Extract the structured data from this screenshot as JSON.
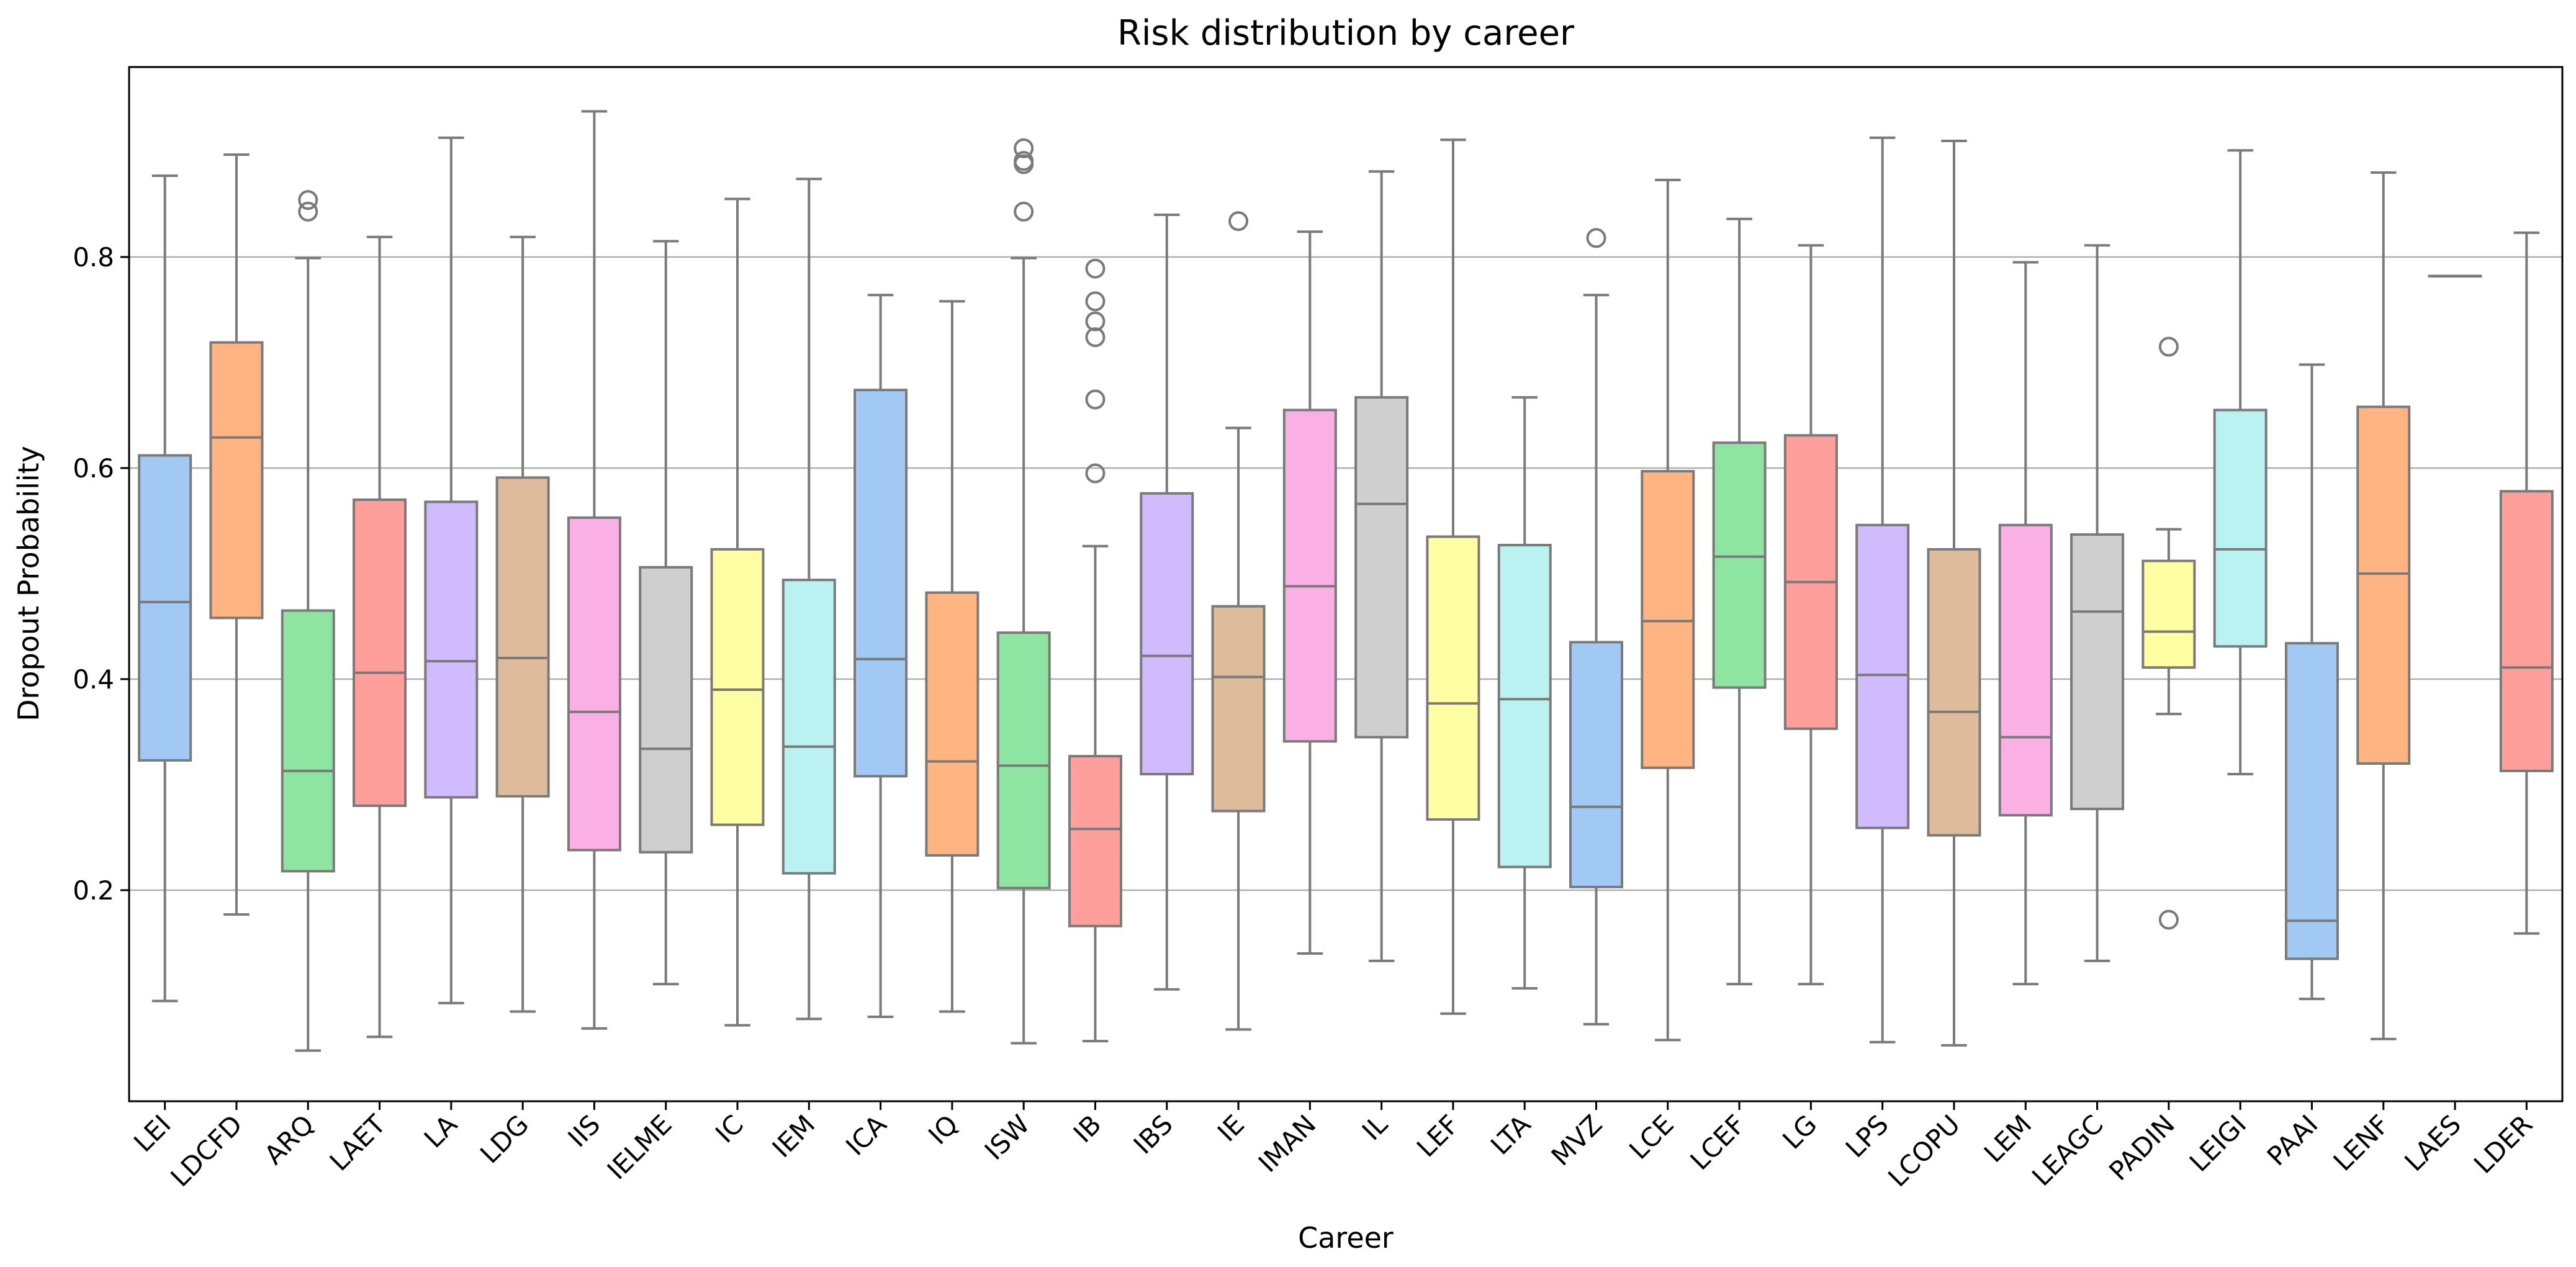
{
  "chart_data": {
    "type": "box",
    "title": "Risk distribution by career",
    "xlabel": "Career",
    "ylabel": "Dropout Probability",
    "ylim": [
      0.0,
      0.98
    ],
    "yticks": [
      0.2,
      0.4,
      0.6,
      0.8
    ],
    "ytick_labels": [
      "0.2",
      "0.4",
      "0.6",
      "0.8"
    ],
    "grid": "horizontal",
    "series": [
      {
        "name": "LEI",
        "color": "#a1c9f4",
        "whislo": 0.095,
        "q1": 0.323,
        "median": 0.473,
        "q3": 0.612,
        "whishi": 0.877,
        "fliers": []
      },
      {
        "name": "LDCFD",
        "color": "#ffb482",
        "whislo": 0.177,
        "q1": 0.458,
        "median": 0.629,
        "q3": 0.719,
        "whishi": 0.897,
        "fliers": []
      },
      {
        "name": "ARQ",
        "color": "#8de5a1",
        "whislo": 0.048,
        "q1": 0.218,
        "median": 0.313,
        "q3": 0.465,
        "whishi": 0.799,
        "fliers": [
          0.854,
          0.843
        ]
      },
      {
        "name": "LAET",
        "color": "#ff9f9b",
        "whislo": 0.061,
        "q1": 0.28,
        "median": 0.406,
        "q3": 0.57,
        "whishi": 0.819,
        "fliers": []
      },
      {
        "name": "LA",
        "color": "#d0bbff",
        "whislo": 0.093,
        "q1": 0.288,
        "median": 0.417,
        "q3": 0.568,
        "whishi": 0.913,
        "fliers": []
      },
      {
        "name": "LDG",
        "color": "#debb9b",
        "whislo": 0.085,
        "q1": 0.289,
        "median": 0.42,
        "q3": 0.591,
        "whishi": 0.819,
        "fliers": []
      },
      {
        "name": "IIS",
        "color": "#fab0e4",
        "whislo": 0.069,
        "q1": 0.238,
        "median": 0.369,
        "q3": 0.553,
        "whishi": 0.938,
        "fliers": []
      },
      {
        "name": "IELME",
        "color": "#cfcfcf",
        "whislo": 0.111,
        "q1": 0.236,
        "median": 0.334,
        "q3": 0.506,
        "whishi": 0.815,
        "fliers": []
      },
      {
        "name": "IC",
        "color": "#fffea3",
        "whislo": 0.072,
        "q1": 0.262,
        "median": 0.39,
        "q3": 0.523,
        "whishi": 0.855,
        "fliers": []
      },
      {
        "name": "IEM",
        "color": "#b9f2f0",
        "whislo": 0.078,
        "q1": 0.216,
        "median": 0.336,
        "q3": 0.494,
        "whishi": 0.874,
        "fliers": []
      },
      {
        "name": "ICA",
        "color": "#a1c9f4",
        "whislo": 0.08,
        "q1": 0.308,
        "median": 0.419,
        "q3": 0.674,
        "whishi": 0.764,
        "fliers": []
      },
      {
        "name": "IQ",
        "color": "#ffb482",
        "whislo": 0.085,
        "q1": 0.233,
        "median": 0.322,
        "q3": 0.482,
        "whishi": 0.758,
        "fliers": []
      },
      {
        "name": "ISW",
        "color": "#8de5a1",
        "whislo": 0.055,
        "q1": 0.202,
        "median": 0.318,
        "q3": 0.444,
        "whishi": 0.799,
        "fliers": [
          0.903,
          0.891,
          0.888,
          0.843
        ]
      },
      {
        "name": "IB",
        "color": "#ff9f9b",
        "whislo": 0.057,
        "q1": 0.166,
        "median": 0.258,
        "q3": 0.327,
        "whishi": 0.526,
        "fliers": [
          0.789,
          0.758,
          0.739,
          0.724,
          0.665,
          0.595
        ]
      },
      {
        "name": "IBS",
        "color": "#d0bbff",
        "whislo": 0.106,
        "q1": 0.31,
        "median": 0.422,
        "q3": 0.576,
        "whishi": 0.84,
        "fliers": []
      },
      {
        "name": "IE",
        "color": "#debb9b",
        "whislo": 0.068,
        "q1": 0.275,
        "median": 0.402,
        "q3": 0.469,
        "whishi": 0.638,
        "fliers": [
          0.834
        ]
      },
      {
        "name": "IMAN",
        "color": "#fab0e4",
        "whislo": 0.14,
        "q1": 0.341,
        "median": 0.488,
        "q3": 0.655,
        "whishi": 0.824,
        "fliers": []
      },
      {
        "name": "IL",
        "color": "#cfcfcf",
        "whislo": 0.133,
        "q1": 0.345,
        "median": 0.566,
        "q3": 0.667,
        "whishi": 0.881,
        "fliers": []
      },
      {
        "name": "LEF",
        "color": "#fffea3",
        "whislo": 0.083,
        "q1": 0.267,
        "median": 0.377,
        "q3": 0.535,
        "whishi": 0.911,
        "fliers": []
      },
      {
        "name": "LTA",
        "color": "#b9f2f0",
        "whislo": 0.107,
        "q1": 0.222,
        "median": 0.381,
        "q3": 0.527,
        "whishi": 0.667,
        "fliers": []
      },
      {
        "name": "MVZ",
        "color": "#a1c9f4",
        "whislo": 0.073,
        "q1": 0.203,
        "median": 0.279,
        "q3": 0.435,
        "whishi": 0.764,
        "fliers": [
          0.818
        ]
      },
      {
        "name": "LCE",
        "color": "#ffb482",
        "whislo": 0.058,
        "q1": 0.316,
        "median": 0.455,
        "q3": 0.597,
        "whishi": 0.873,
        "fliers": []
      },
      {
        "name": "LCEF",
        "color": "#8de5a1",
        "whislo": 0.111,
        "q1": 0.392,
        "median": 0.516,
        "q3": 0.624,
        "whishi": 0.836,
        "fliers": []
      },
      {
        "name": "LG",
        "color": "#ff9f9b",
        "whislo": 0.111,
        "q1": 0.353,
        "median": 0.492,
        "q3": 0.631,
        "whishi": 0.811,
        "fliers": []
      },
      {
        "name": "LPS",
        "color": "#d0bbff",
        "whislo": 0.056,
        "q1": 0.259,
        "median": 0.404,
        "q3": 0.546,
        "whishi": 0.913,
        "fliers": []
      },
      {
        "name": "LCOPU",
        "color": "#debb9b",
        "whislo": 0.053,
        "q1": 0.252,
        "median": 0.369,
        "q3": 0.523,
        "whishi": 0.91,
        "fliers": []
      },
      {
        "name": "LEM",
        "color": "#fab0e4",
        "whislo": 0.111,
        "q1": 0.271,
        "median": 0.345,
        "q3": 0.546,
        "whishi": 0.795,
        "fliers": []
      },
      {
        "name": "LEAGC",
        "color": "#cfcfcf",
        "whislo": 0.133,
        "q1": 0.277,
        "median": 0.464,
        "q3": 0.537,
        "whishi": 0.811,
        "fliers": []
      },
      {
        "name": "PADIN",
        "color": "#fffea3",
        "whislo": 0.367,
        "q1": 0.411,
        "median": 0.445,
        "q3": 0.512,
        "whishi": 0.542,
        "fliers": [
          0.715,
          0.172
        ]
      },
      {
        "name": "LEIGI",
        "color": "#b9f2f0",
        "whislo": 0.31,
        "q1": 0.431,
        "median": 0.523,
        "q3": 0.655,
        "whishi": 0.901,
        "fliers": []
      },
      {
        "name": "PAAI",
        "color": "#a1c9f4",
        "whislo": 0.097,
        "q1": 0.135,
        "median": 0.171,
        "q3": 0.434,
        "whishi": 0.698,
        "fliers": []
      },
      {
        "name": "LENF",
        "color": "#ffb482",
        "whislo": 0.059,
        "q1": 0.32,
        "median": 0.5,
        "q3": 0.658,
        "whishi": 0.88,
        "fliers": []
      },
      {
        "name": "LAES",
        "color": "#8de5a1",
        "whislo": 0.782,
        "q1": 0.782,
        "median": 0.782,
        "q3": 0.782,
        "whishi": 0.782,
        "fliers": []
      },
      {
        "name": "LDER",
        "color": "#ff9f9b",
        "whislo": 0.159,
        "q1": 0.313,
        "median": 0.411,
        "q3": 0.578,
        "whishi": 0.823,
        "fliers": []
      }
    ]
  }
}
